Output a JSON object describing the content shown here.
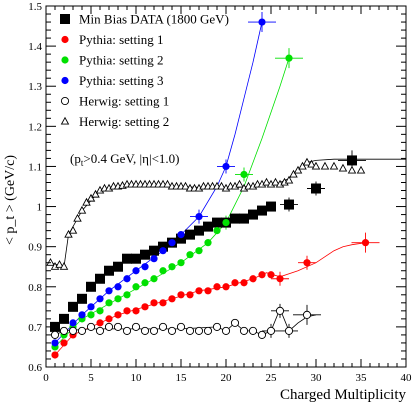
{
  "chart_data": {
    "type": "scatter",
    "xlabel": "Charged Multiplicity",
    "ylabel": "< p_t > (GeV/c)",
    "xlim": [
      0,
      40
    ],
    "ylim": [
      0.6,
      1.5
    ],
    "x_ticks": [
      0,
      5,
      10,
      15,
      20,
      25,
      30,
      35,
      40
    ],
    "y_ticks": [
      0.6,
      0.7,
      0.8,
      0.9,
      1.0,
      1.1,
      1.2,
      1.3,
      1.4,
      1.5
    ],
    "x_tick_labels": [
      "0",
      "5",
      "10",
      "15",
      "20",
      "25",
      "30",
      "35",
      "40"
    ],
    "y_tick_labels": [
      "0.6",
      "0.7",
      "0.8",
      "0.9",
      "1",
      "1.1",
      "1.2",
      "1.3",
      "1.4",
      "1.5"
    ],
    "grid": false,
    "legend_position": "top-left",
    "cut_annotation": {
      "prefix": "(p",
      "sub": "t",
      "suffix": ">0.4 GeV, |η|<1.0)"
    },
    "series": [
      {
        "name": "Min Bias DATA (1800 GeV)",
        "marker": "square",
        "color": "#000000",
        "x": [
          1,
          2,
          3,
          4,
          5,
          6,
          7,
          8,
          9,
          10,
          11,
          12,
          13,
          14,
          15,
          16,
          17,
          18,
          19,
          20,
          21,
          22,
          23,
          24,
          25,
          27,
          30,
          34
        ],
        "y": [
          0.7,
          0.72,
          0.75,
          0.77,
          0.8,
          0.82,
          0.84,
          0.85,
          0.87,
          0.87,
          0.88,
          0.89,
          0.9,
          0.91,
          0.92,
          0.93,
          0.94,
          0.95,
          0.96,
          0.96,
          0.97,
          0.97,
          0.98,
          0.99,
          1.0,
          1.005,
          1.045,
          1.115
        ]
      },
      {
        "name": "Pythia: setting 1",
        "marker": "circle-filled",
        "color": "#ff0000",
        "x": [
          1,
          2,
          3,
          4,
          5,
          6,
          7,
          8,
          9,
          10,
          11,
          12,
          13,
          14,
          15,
          16,
          17,
          18,
          19,
          20,
          21,
          22,
          23,
          24,
          25,
          26,
          29,
          35.5
        ],
        "y": [
          0.63,
          0.66,
          0.68,
          0.69,
          0.7,
          0.71,
          0.72,
          0.73,
          0.74,
          0.74,
          0.75,
          0.76,
          0.76,
          0.77,
          0.78,
          0.78,
          0.79,
          0.79,
          0.8,
          0.8,
          0.81,
          0.81,
          0.82,
          0.83,
          0.83,
          0.82,
          0.86,
          0.91
        ],
        "fit_x": [
          1,
          3,
          5,
          8,
          11,
          14,
          17,
          20,
          23,
          24.5,
          26,
          28,
          30,
          31,
          32,
          33,
          34,
          35.5
        ],
        "fit_y": [
          0.63,
          0.68,
          0.7,
          0.73,
          0.75,
          0.77,
          0.79,
          0.8,
          0.82,
          0.835,
          0.825,
          0.84,
          0.86,
          0.875,
          0.89,
          0.9,
          0.905,
          0.91
        ]
      },
      {
        "name": "Pythia: setting 2",
        "marker": "circle-filled",
        "color": "#00e000",
        "x": [
          1,
          2,
          3,
          4,
          5,
          6,
          7,
          8,
          9,
          10,
          11,
          12,
          13,
          14,
          15,
          16,
          17,
          18,
          19,
          20,
          22,
          27
        ],
        "y": [
          0.65,
          0.68,
          0.7,
          0.72,
          0.73,
          0.74,
          0.76,
          0.77,
          0.78,
          0.8,
          0.81,
          0.82,
          0.84,
          0.85,
          0.86,
          0.88,
          0.89,
          0.91,
          0.94,
          0.96,
          1.08,
          1.37
        ],
        "fit_x": [
          1,
          4,
          8,
          12,
          15,
          18,
          20,
          22,
          24,
          26,
          27
        ],
        "fit_y": [
          0.65,
          0.72,
          0.77,
          0.82,
          0.86,
          0.91,
          0.96,
          1.05,
          1.17,
          1.3,
          1.37
        ]
      },
      {
        "name": "Pythia: setting 3",
        "marker": "circle-filled",
        "color": "#0000ff",
        "x": [
          1,
          2,
          3,
          4,
          5,
          6,
          7,
          8,
          9,
          10,
          11,
          12,
          13,
          14,
          15,
          17,
          20,
          24
        ],
        "y": [
          0.66,
          0.69,
          0.71,
          0.73,
          0.75,
          0.77,
          0.79,
          0.8,
          0.82,
          0.84,
          0.85,
          0.87,
          0.89,
          0.91,
          0.93,
          0.975,
          1.1,
          1.46
        ],
        "fit_x": [
          1,
          4,
          7,
          10,
          13,
          15,
          17,
          19,
          20,
          21,
          22,
          23,
          24
        ],
        "fit_y": [
          0.66,
          0.73,
          0.79,
          0.84,
          0.89,
          0.93,
          0.975,
          1.05,
          1.1,
          1.18,
          1.27,
          1.36,
          1.46
        ]
      },
      {
        "name": "Herwig: setting 1",
        "marker": "circle-open",
        "color": "#000000",
        "x": [
          1,
          2,
          3,
          4,
          5,
          6,
          7,
          8,
          9,
          10,
          11,
          12,
          13,
          14,
          15,
          16,
          17,
          18,
          19,
          20,
          21,
          22,
          23,
          24,
          25,
          26,
          27,
          29
        ],
        "y": [
          0.68,
          0.69,
          0.69,
          0.69,
          0.7,
          0.69,
          0.7,
          0.7,
          0.69,
          0.7,
          0.69,
          0.69,
          0.7,
          0.69,
          0.7,
          0.69,
          0.69,
          0.69,
          0.7,
          0.69,
          0.71,
          0.69,
          0.69,
          0.68,
          0.69,
          0.74,
          0.69,
          0.73
        ],
        "fit_x": [
          1,
          2,
          5,
          10,
          15,
          19,
          20,
          21,
          22,
          23,
          24,
          25,
          26,
          27,
          28,
          29,
          30
        ],
        "fit_y": [
          0.68,
          0.69,
          0.695,
          0.695,
          0.695,
          0.7,
          0.69,
          0.71,
          0.69,
          0.69,
          0.68,
          0.69,
          0.745,
          0.69,
          0.71,
          0.725,
          0.73
        ]
      },
      {
        "name": "Herwig: setting 2",
        "marker": "triangle-open",
        "color": "#000000",
        "x": [
          0.5,
          1,
          1.5,
          2,
          2.5,
          3,
          3.5,
          4,
          4.5,
          5,
          5.5,
          6,
          6.5,
          7,
          7.5,
          8,
          8.5,
          9,
          9.5,
          10,
          10.5,
          11,
          11.5,
          12,
          12.5,
          13,
          13.5,
          14,
          14.5,
          15,
          15.5,
          16,
          16.5,
          17,
          17.5,
          18,
          18.5,
          19,
          19.5,
          20,
          20.5,
          21,
          21.5,
          22,
          22.5,
          23,
          23.5,
          24,
          24.5,
          25,
          25.5,
          26,
          26.5,
          27,
          27.5,
          28,
          28.5,
          29,
          29.5,
          30,
          31,
          32,
          33,
          34,
          35
        ],
        "y": [
          0.86,
          0.85,
          0.855,
          0.85,
          0.93,
          0.94,
          0.97,
          0.99,
          1.01,
          1.02,
          1.03,
          1.04,
          1.045,
          1.045,
          1.05,
          1.05,
          1.052,
          1.055,
          1.055,
          1.055,
          1.055,
          1.055,
          1.055,
          1.055,
          1.055,
          1.055,
          1.055,
          1.05,
          1.05,
          1.05,
          1.05,
          1.045,
          1.045,
          1.045,
          1.05,
          1.05,
          1.05,
          1.05,
          1.05,
          1.045,
          1.05,
          1.05,
          1.055,
          1.045,
          1.05,
          1.05,
          1.055,
          1.055,
          1.06,
          1.055,
          1.06,
          1.055,
          1.06,
          1.065,
          1.08,
          1.09,
          1.1,
          1.11,
          1.105,
          1.1,
          1.1,
          1.1,
          1.095,
          1.09,
          1.09
        ],
        "fit_x": [
          0.5,
          2,
          2.5,
          4,
          6,
          8,
          10,
          15,
          20,
          25,
          26,
          27,
          28,
          29,
          30,
          32,
          35,
          40
        ],
        "fit_y": [
          0.86,
          0.85,
          0.93,
          0.99,
          1.04,
          1.05,
          1.055,
          1.05,
          1.045,
          1.055,
          1.06,
          1.07,
          1.09,
          1.11,
          1.115,
          1.118,
          1.118,
          1.118
        ]
      }
    ]
  }
}
